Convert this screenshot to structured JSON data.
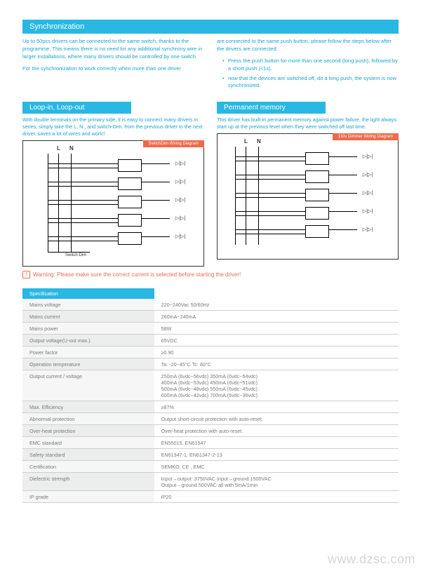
{
  "sync": {
    "title": "Synchronization",
    "left_p1": "Up to 50pcs drivers can be connected to the same switch, thanks to the programme. This means there is no need for any additional synchrony wire in larger installations, where many drivers should be controlled by one switch.",
    "left_p2": "For the synchronization to work correctly when more than one driver",
    "right_p1": "are connected to the same push button, please follow the steps below after the drivers are connected:",
    "bullet1": "Press the push button for more than one second (long push),  followed by a short push (<1s).",
    "bullet2": "now that  the devices are switched off, do a long push, the  system is now synchronized."
  },
  "loop": {
    "title": "Loop-in, Loop-out",
    "text": "With double terminals on the primary side, it is easy to connect many drivers in series, simply take the L, N , and switch-Dim. from the previous driver to the next driver.  saves a lot of wires and work!!",
    "diag_label": "SwitchDim Wiring Diagram",
    "L": "L",
    "N": "N",
    "switch_dim": "Switch-Dim"
  },
  "perm": {
    "title": "Permanent memory",
    "text": "This driver has built-in permanent memory against power failure, the light always start up at the previous level when they were switched off last time.",
    "diag_label": "110v Dimmer Wiring Diagram",
    "L": "L",
    "N": "N"
  },
  "warning": {
    "icon": "!",
    "text": "Warning: Please make sure the correct current is selected before starting the driver!"
  },
  "spec": {
    "header": "Specification",
    "rows": [
      {
        "k": "Mains voltage",
        "v": "220~240Vac  50/60Hz"
      },
      {
        "k": "Mains current",
        "v": "260mA~240mA"
      },
      {
        "k": "Mains power",
        "v": "58W"
      },
      {
        "k": "Output voltage(U-out max.)",
        "v": "65VDC"
      },
      {
        "k": "Power factor",
        "v": "≥0.90"
      },
      {
        "k": "Operation temperature",
        "v": "Ta:  -20~45°C      Tc: 80°C"
      },
      {
        "k": "Output current / voltage",
        "v": "250mA (6vdc~56vdc)   350mA (6vdc~54vdc)\n400mA (6vdc~53vdc)   450mA (6vdc~51vdc)\n500mA (6vdc~48vdc)   550mA (6vdc~45vdc)\n600mA (6vdc~42vdc)   700mA (6vdc~36vdc)"
      },
      {
        "k": "Max. Efficiency",
        "v": "≥87%"
      },
      {
        "k": "Abnormal protection",
        "v": "Output short-circuit protection with auto-reset."
      },
      {
        "k": "Over-heat protection",
        "v": "Over-heat protection with auto-reset."
      },
      {
        "k": "EMC standard",
        "v": "EN55015, EN61547"
      },
      {
        "k": "Safety standard",
        "v": "EN61347-1, EN61347-2-13"
      },
      {
        "k": "Certification",
        "v": "SEMKO, CE , EMC"
      },
      {
        "k": "Dielectric strength",
        "v": "Input→output: 3750VAC      Input→ground  1500VAC\nOutput→ground 500VAC all  with 5mA/1min"
      },
      {
        "k": "IP grade",
        "v": "IP20"
      }
    ]
  },
  "watermark": "www.dzsc.com"
}
